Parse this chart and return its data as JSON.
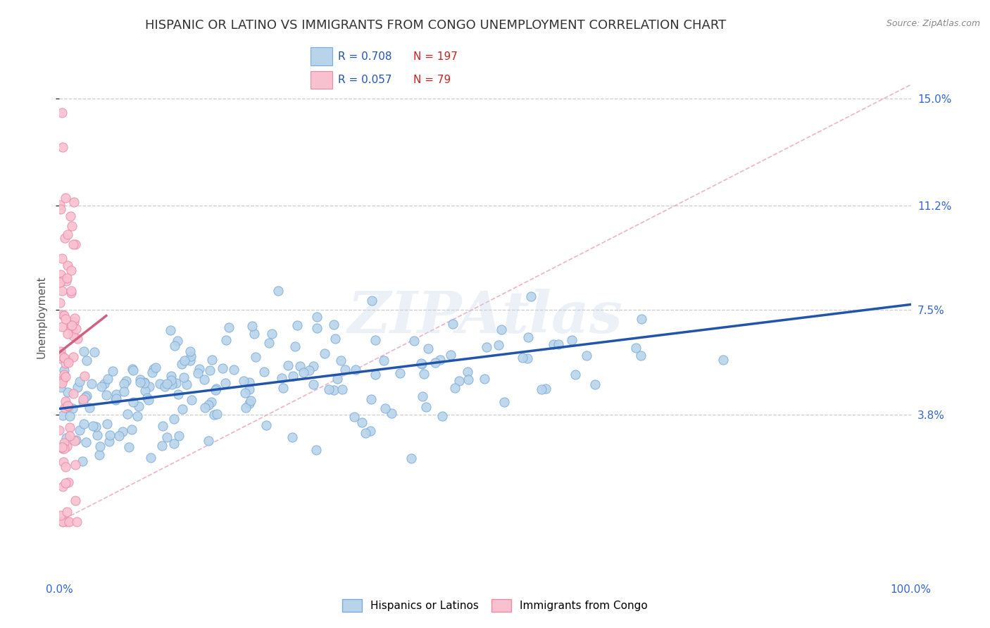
{
  "title": "HISPANIC OR LATINO VS IMMIGRANTS FROM CONGO UNEMPLOYMENT CORRELATION CHART",
  "source": "Source: ZipAtlas.com",
  "ylabel": "Unemployment",
  "x_label_bottom_left": "0.0%",
  "x_label_bottom_right": "100.0%",
  "y_tick_labels": [
    "3.8%",
    "7.5%",
    "11.2%",
    "15.0%"
  ],
  "y_tick_values": [
    0.038,
    0.075,
    0.112,
    0.15
  ],
  "xlim": [
    0.0,
    1.0
  ],
  "ylim": [
    -0.02,
    0.165
  ],
  "series": [
    {
      "name": "Hispanics or Latinos",
      "R": 0.708,
      "N": 197,
      "color": "#b8d4ea",
      "edge_color": "#7aabdb",
      "trend_color": "#2255aa",
      "trend_style": "solid"
    },
    {
      "name": "Immigrants from Congo",
      "R": 0.057,
      "N": 79,
      "color": "#f9c0d0",
      "edge_color": "#e88aaa",
      "trend_color": "#d06080",
      "trend_style": "solid"
    }
  ],
  "ref_line_color": "#e8a0b8",
  "watermark": "ZIPAtlas",
  "background_color": "#ffffff",
  "grid_color": "#cccccc",
  "title_color": "#333333",
  "legend_R_color": "#2255aa",
  "legend_N_color": "#cc2222",
  "title_fontsize": 13,
  "axis_label_fontsize": 11,
  "tick_fontsize": 11,
  "blue_trend_x0": 0.0,
  "blue_trend_x1": 1.0,
  "blue_trend_y0": 0.04,
  "blue_trend_y1": 0.077,
  "pink_trend_x0": 0.0,
  "pink_trend_x1": 0.055,
  "pink_trend_y0": 0.06,
  "pink_trend_y1": 0.073,
  "ref_line_x0": 0.0,
  "ref_line_x1": 1.0,
  "ref_line_y0": 0.0,
  "ref_line_y1": 0.155
}
